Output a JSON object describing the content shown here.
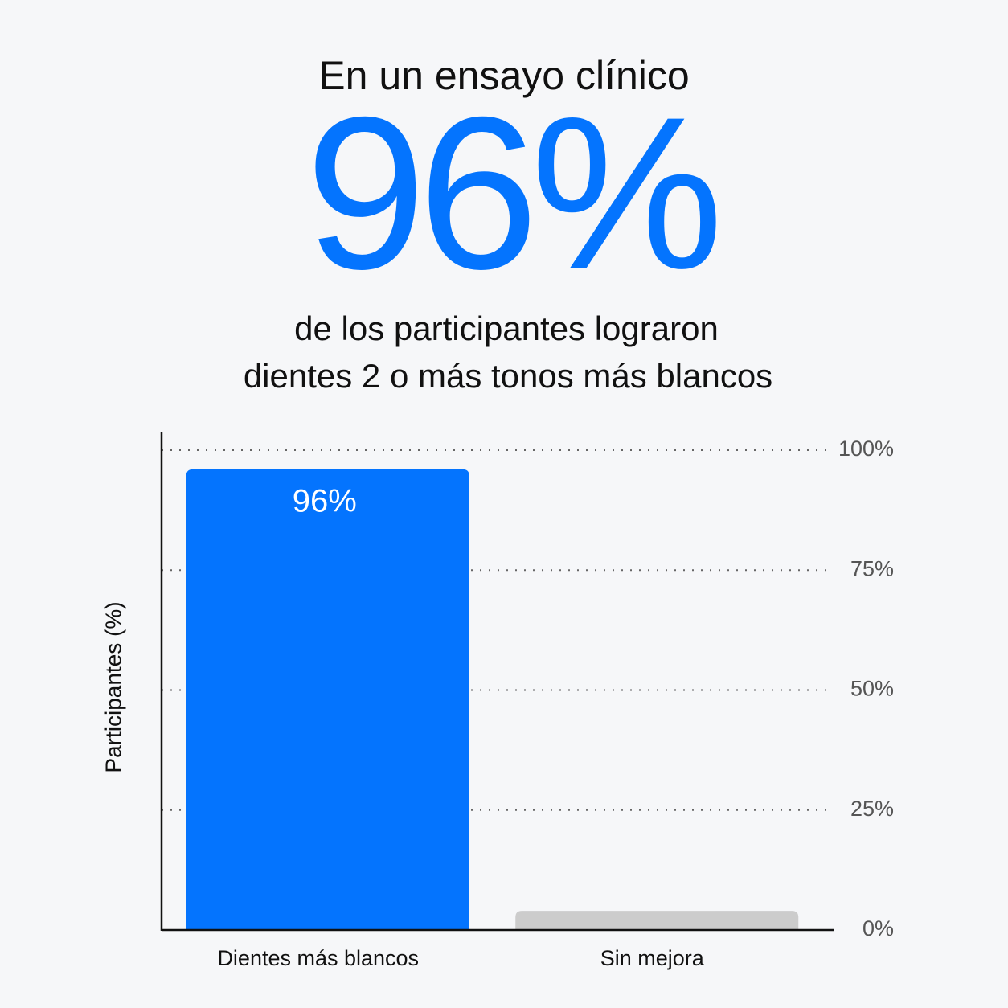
{
  "chart_data": {
    "type": "bar",
    "title": "En un ensayo clínico",
    "headline": "96%",
    "subtitle": [
      "de los participantes lograron",
      "dientes 2 o más tonos más blancos"
    ],
    "y_label": "Participantes (%)",
    "categories": [
      "Dientes más blancos",
      "Sin mejora"
    ],
    "values": [
      96,
      4
    ],
    "value_labels": [
      "96%",
      null
    ],
    "colors": [
      "#0474fe",
      "#cccccc"
    ],
    "ylim": [
      0,
      100
    ],
    "yticks": [
      {
        "value": 0,
        "label": "0%"
      },
      {
        "value": 25,
        "label": "25%"
      },
      {
        "value": 50,
        "label": "50%"
      },
      {
        "value": 75,
        "label": "75%"
      },
      {
        "value": 100,
        "label": "100%"
      }
    ],
    "grid": true
  }
}
